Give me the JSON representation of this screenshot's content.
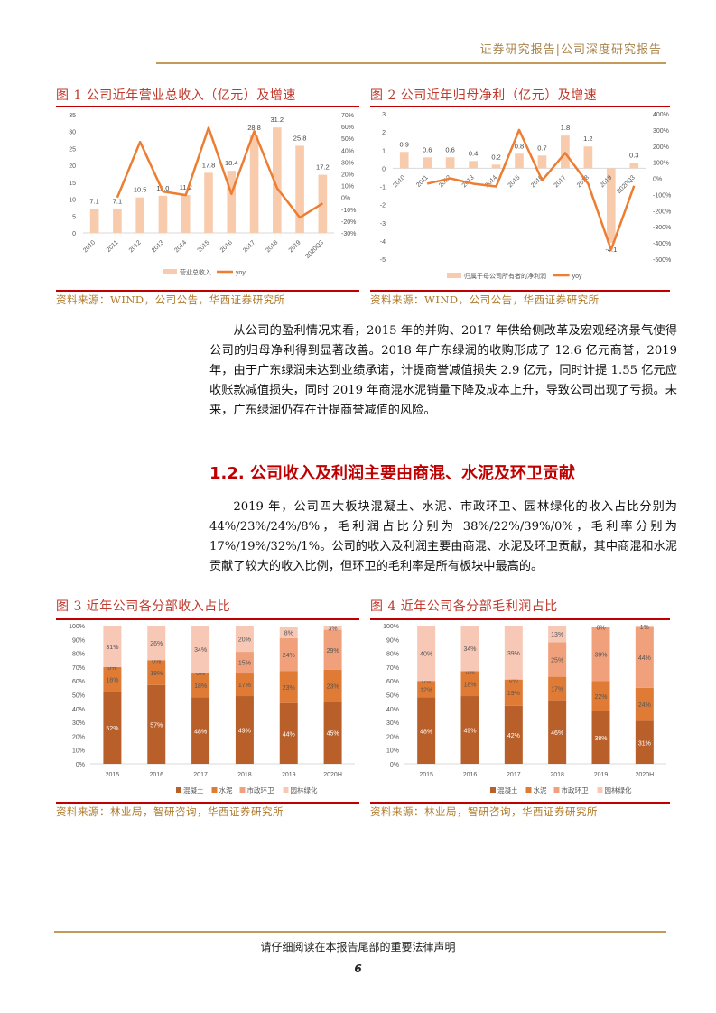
{
  "header": {
    "title": "证券研究报告|公司深度研究报告"
  },
  "figures": [
    {
      "title": "图 1  公司近年营业总收入（亿元）及增速",
      "source": "资料来源：WIND，公司公告，华西证券研究所"
    },
    {
      "title": "图 2   公司近年归母净利（亿元）及增速",
      "source": "资料来源：WIND，公司公告，华西证券研究所"
    },
    {
      "title": "图 3   近年公司各分部收入占比",
      "source": "资料来源：林业局，智研咨询，华西证券研究所"
    },
    {
      "title": "图 4   近年公司各分部毛利润占比",
      "source": "资料来源：林业局，智研咨询，华西证券研究所"
    }
  ],
  "paragraphs": [
    "从公司的盈利情况来看，2015 年的并购、2017 年供给侧改革及宏观经济景气使得公司的归母净利得到显著改善。2018 年广东绿润的收购形成了 12.6 亿元商誉，2019 年，由于广东绿润未达到业绩承诺，计提商誉减值损失 2.9 亿元，同时计提 1.55 亿元应收账款减值损失，同时 2019 年商混水泥销量下降及成本上升，导致公司出现了亏损。未来，广东绿润仍存在计提商誉减值的风险。",
    "2019 年，公司四大板块混凝土、水泥、市政环卫、园林绿化的收入占比分别为 44%/23%/24%/8%，毛利润占比分别为 38%/22%/39%/0%，毛利率分别为 17%/19%/32%/1%。公司的收入及利润主要由商混、水泥及环卫贡献，其中商混和水泥贡献了较大的收入比例，但环卫的毛利率是所有板块中最高的。"
  ],
  "section_heading": "1.2. 公司收入及利润主要由商混、水泥及环卫贡献",
  "footer": {
    "disclaimer": "请仔细阅读在本报告尾部的重要法律声明",
    "page": "6"
  },
  "colors": {
    "bar": "#f8cbad",
    "line": "#ed7d31",
    "s1": "#b9602a",
    "s2": "#e07b35",
    "s3": "#f0a07a",
    "s4": "#f7c8b6",
    "red": "#c00000"
  },
  "chart_data": [
    {
      "type": "bar+line",
      "title": "公司近年营业总收入（亿元）及增速",
      "categories": [
        "2010",
        "2011",
        "2012",
        "2013",
        "2014",
        "2015",
        "2016",
        "2017",
        "2018",
        "2019",
        "2020Q3"
      ],
      "series": [
        {
          "name": "营业总收入",
          "axis": "left",
          "values": [
            7.1,
            7.1,
            10.5,
            11.0,
            11.2,
            17.8,
            18.4,
            28.8,
            31.2,
            25.8,
            17.2
          ],
          "labels": [
            "7.1",
            "7.1",
            "10.5",
            "11.0",
            "11.2",
            "17.8",
            "18.4",
            "28.8",
            "31.2",
            "25.8",
            "17.2"
          ]
        },
        {
          "name": "yoy",
          "axis": "right",
          "values": [
            null,
            0,
            47,
            5,
            2,
            59,
            3,
            56,
            8,
            -17,
            -5
          ]
        }
      ],
      "ylim": [
        0,
        35
      ],
      "yticks": [
        "0",
        "5",
        "10",
        "15",
        "20",
        "25",
        "30",
        "35"
      ],
      "y2lim": [
        -30,
        70
      ],
      "y2ticks": [
        "-30%",
        "-20%",
        "-10%",
        "0%",
        "10%",
        "20%",
        "30%",
        "40%",
        "50%",
        "60%",
        "70%"
      ],
      "legend": "bottom"
    },
    {
      "type": "bar+line",
      "title": "公司近年归母净利（亿元）及增速",
      "categories": [
        "2010",
        "2011",
        "2012",
        "2013",
        "2014",
        "2015",
        "2016",
        "2017",
        "2018",
        "2019",
        "2020Q3"
      ],
      "series": [
        {
          "name": "归属于母公司所有者的净利润",
          "axis": "left",
          "values": [
            0.9,
            0.6,
            0.6,
            0.4,
            0.2,
            0.8,
            0.7,
            1.8,
            1.2,
            -4.1,
            0.3
          ],
          "labels": [
            "0.9",
            "0.6",
            "0.6",
            "0.4",
            "0.2",
            "0.8",
            "0.7",
            "1.8",
            "1.2",
            "-4.1",
            "0.3"
          ]
        },
        {
          "name": "yoy",
          "axis": "right",
          "values": [
            null,
            -33,
            0,
            -33,
            -50,
            300,
            -13,
            157,
            -33,
            -442,
            -46
          ]
        }
      ],
      "ylim": [
        -5,
        3
      ],
      "yticks": [
        "-5",
        "-4",
        "-3",
        "-2",
        "-1",
        "0",
        "1",
        "2",
        "3"
      ],
      "y2lim": [
        -500,
        400
      ],
      "y2ticks": [
        "-500%",
        "-400%",
        "-300%",
        "-200%",
        "-100%",
        "0%",
        "100%",
        "200%",
        "300%",
        "400%"
      ],
      "legend": "bottom"
    },
    {
      "type": "stacked-bar",
      "title": "近年公司各分部收入占比",
      "categories": [
        "2015",
        "2016",
        "2017",
        "2018",
        "2019",
        "2020H"
      ],
      "series": [
        {
          "name": "混凝土",
          "values": [
            52,
            57,
            48,
            49,
            44,
            45
          ]
        },
        {
          "name": "水泥",
          "values": [
            18,
            18,
            18,
            17,
            23,
            23
          ]
        },
        {
          "name": "市政环卫",
          "values": [
            0,
            0,
            0,
            15,
            24,
            29
          ]
        },
        {
          "name": "园林绿化",
          "values": [
            31,
            26,
            34,
            20,
            8,
            3
          ]
        }
      ],
      "ylim": [
        0,
        100
      ],
      "yticks": [
        "0%",
        "10%",
        "20%",
        "30%",
        "40%",
        "50%",
        "60%",
        "70%",
        "80%",
        "90%",
        "100%"
      ],
      "legend": "bottom"
    },
    {
      "type": "stacked-bar",
      "title": "近年公司各分部毛利润占比",
      "categories": [
        "2015",
        "2016",
        "2017",
        "2018",
        "2019",
        "2020H"
      ],
      "series": [
        {
          "name": "混凝土",
          "values": [
            48,
            49,
            42,
            46,
            38,
            31
          ]
        },
        {
          "name": "水泥",
          "values": [
            12,
            18,
            19,
            17,
            22,
            24
          ]
        },
        {
          "name": "市政环卫",
          "values": [
            0,
            0,
            0,
            25,
            39,
            44
          ]
        },
        {
          "name": "园林绿化",
          "values": [
            40,
            34,
            39,
            13,
            0,
            1
          ]
        }
      ],
      "ylim": [
        0,
        100
      ],
      "yticks": [
        "0%",
        "10%",
        "20%",
        "30%",
        "40%",
        "50%",
        "60%",
        "70%",
        "80%",
        "90%",
        "100%"
      ],
      "legend": "bottom"
    }
  ]
}
